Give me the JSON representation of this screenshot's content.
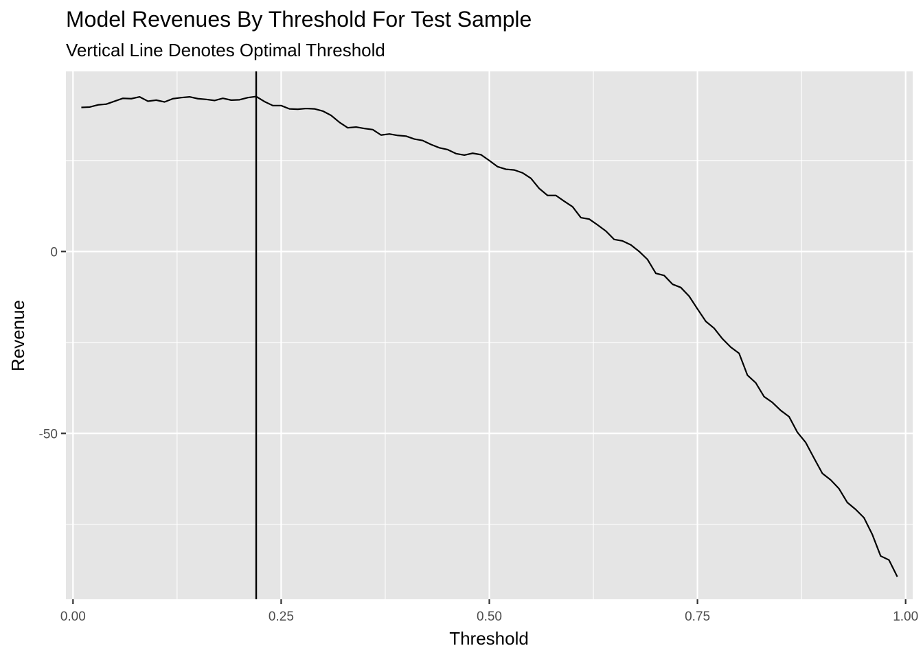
{
  "chart_data": {
    "type": "line",
    "title": "Model Revenues By Threshold For Test Sample",
    "subtitle": "Vertical Line Denotes Optimal Threshold",
    "xlabel": "Threshold",
    "ylabel": "Revenue",
    "xlim": [
      -0.0085,
      1.0085
    ],
    "ylim": [
      -95.6,
      49.5
    ],
    "x_ticks": [
      0.0,
      0.25,
      0.5,
      0.75,
      1.0
    ],
    "x_tick_labels": [
      "0.00",
      "0.25",
      "0.50",
      "0.75",
      "1.00"
    ],
    "y_ticks": [
      0,
      -50
    ],
    "y_tick_labels": [
      "0",
      "-50"
    ],
    "grid": true,
    "legend": "none",
    "optimal_threshold": 0.22,
    "series": [
      {
        "x": [
          0.01,
          0.02,
          0.03,
          0.04,
          0.05,
          0.06,
          0.07,
          0.08,
          0.09,
          0.1,
          0.11,
          0.12,
          0.13,
          0.14,
          0.15,
          0.16,
          0.17,
          0.18,
          0.19,
          0.2,
          0.21,
          0.22,
          0.23,
          0.24,
          0.25,
          0.26,
          0.27,
          0.28,
          0.29,
          0.3,
          0.31,
          0.32,
          0.33,
          0.34,
          0.35,
          0.36,
          0.37,
          0.38,
          0.39,
          0.4,
          0.41,
          0.42,
          0.43,
          0.44,
          0.45,
          0.46,
          0.47,
          0.48,
          0.49,
          0.5,
          0.51,
          0.52,
          0.53,
          0.54,
          0.55,
          0.56,
          0.57,
          0.58,
          0.59,
          0.6,
          0.61,
          0.62,
          0.63,
          0.64,
          0.65,
          0.66,
          0.67,
          0.68,
          0.69,
          0.7,
          0.71,
          0.72,
          0.73,
          0.74,
          0.75,
          0.76,
          0.77,
          0.78,
          0.79,
          0.8,
          0.81,
          0.82,
          0.83,
          0.84,
          0.85,
          0.86,
          0.87,
          0.88,
          0.89,
          0.9,
          0.91,
          0.92,
          0.93,
          0.94,
          0.95,
          0.96,
          0.97,
          0.98,
          0.99
        ],
        "values": [
          39.6,
          39.7,
          40.3,
          40.5,
          41.3,
          42.1,
          42.0,
          42.5,
          41.3,
          41.6,
          41.1,
          42.0,
          42.3,
          42.5,
          42.0,
          41.8,
          41.5,
          42.1,
          41.6,
          41.7,
          42.3,
          42.6,
          41.2,
          40.1,
          40.1,
          39.2,
          39.1,
          39.3,
          39.2,
          38.6,
          37.4,
          35.5,
          34.0,
          34.2,
          33.8,
          33.5,
          32.0,
          32.3,
          31.9,
          31.7,
          30.9,
          30.5,
          29.4,
          28.5,
          28.0,
          26.9,
          26.5,
          27.0,
          26.6,
          25.0,
          23.3,
          22.6,
          22.4,
          21.6,
          20.1,
          17.3,
          15.4,
          15.4,
          13.8,
          12.3,
          9.3,
          8.9,
          7.3,
          5.6,
          3.3,
          2.9,
          1.8,
          0.0,
          -2.2,
          -6.0,
          -6.6,
          -9.0,
          -9.9,
          -12.3,
          -15.8,
          -19.2,
          -21.1,
          -24.0,
          -26.3,
          -28.0,
          -34.0,
          -36.1,
          -39.9,
          -41.5,
          -43.7,
          -45.4,
          -49.7,
          -52.5,
          -56.8,
          -61.0,
          -62.8,
          -65.2,
          -69.0,
          -70.9,
          -73.2,
          -77.8,
          -83.7,
          -84.8,
          -89.4
        ]
      }
    ]
  }
}
